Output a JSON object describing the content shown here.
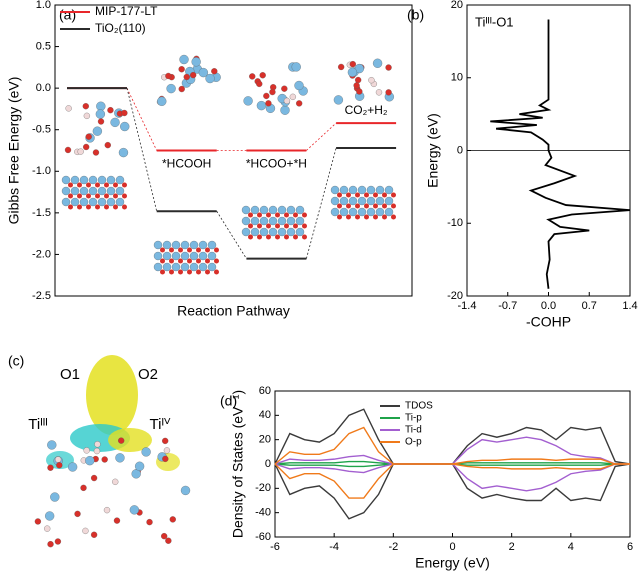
{
  "chart_data": [
    {
      "type": "level",
      "panel_label": "(a)",
      "x_label": "Reaction Pathway",
      "y_label": "Gibbs Free Energy (eV)",
      "categories": [
        null,
        "*HCOOH",
        "*HCOO+*H",
        "CO₂+H₂"
      ],
      "series": [
        {
          "name": "MIP-177-LT",
          "color": "#e8262a",
          "values": [
            0,
            -0.75,
            -0.75,
            -0.42
          ]
        },
        {
          "name": "TiO₂(110)",
          "color": "#2b2b2b",
          "values": [
            0,
            -1.48,
            -2.05,
            -0.72
          ]
        }
      ],
      "ylim": [
        -2.5,
        1.0
      ],
      "yticks": [
        -2.5,
        {
          "value": -2,
          "label": "-2.0"
        },
        -1.5,
        {
          "value": -1,
          "label": "-1.0"
        },
        -0.5,
        {
          "value": 0,
          "label": "0.0"
        },
        0.5,
        {
          "value": 1,
          "label": "1.0"
        }
      ],
      "legend": "top-left"
    },
    {
      "type": "cohp",
      "panel_label": "(b)",
      "annotation": "Tiᴵᴵᴵ-O1",
      "x_label": "-COHP",
      "y_label": "Energy (eV)",
      "color": "#000000",
      "x": [
        0,
        0,
        -0.15,
        0,
        -0.5,
        -0.1,
        -1.0,
        -0.2,
        -0.9,
        -0.3,
        -0.1,
        0,
        0,
        0.05,
        -0.05,
        0.45,
        0.1,
        -0.3,
        -0.05,
        0.3,
        1.4,
        0.4,
        0,
        0.2,
        0.7,
        0.1,
        0,
        0.02,
        -0.03,
        0
      ],
      "y": [
        18,
        7,
        6.2,
        5.6,
        5,
        4.5,
        4,
        3.5,
        3,
        2.5,
        1.5,
        0.8,
        0,
        -1,
        -2,
        -3.5,
        -4.5,
        -5.5,
        -6.5,
        -7.5,
        -8.2,
        -8.8,
        -9.5,
        -10.5,
        -11,
        -11.5,
        -12.5,
        -15,
        -17,
        -19
      ],
      "xlim": [
        -1.4,
        1.4
      ],
      "xticks": [
        -1.4,
        -0.7,
        {
          "value": 0,
          "label": "0.0"
        },
        0.7,
        1.4
      ],
      "ylim": [
        -20,
        20
      ],
      "yticks": [
        -20,
        -10,
        0,
        10,
        20
      ]
    },
    {
      "type": "dos",
      "panel_label": "(d)",
      "x_label": "Energy (eV)",
      "y_label": "Density of States (eV⁻¹)",
      "x": [
        -6,
        -5.5,
        -5,
        -4.5,
        -4,
        -3.5,
        -3,
        -2.5,
        -2,
        -1.5,
        -1,
        -0.5,
        0,
        0.5,
        1,
        1.5,
        2,
        2.5,
        3,
        3.5,
        4,
        4.5,
        5,
        5.5,
        6
      ],
      "series": [
        {
          "name": "TDOS",
          "color": "#3a3a3a",
          "values": [
            0,
            25,
            20,
            18,
            25,
            40,
            45,
            20,
            0,
            0,
            0,
            0,
            0,
            15,
            25,
            22,
            25,
            30,
            28,
            20,
            30,
            28,
            30,
            2,
            0
          ],
          "values_down": [
            0,
            -25,
            -20,
            -18,
            -28,
            -45,
            -40,
            -25,
            0,
            0,
            0,
            0,
            0,
            -20,
            -28,
            -25,
            -28,
            -30,
            -30,
            -20,
            -30,
            -28,
            -30,
            -2,
            0
          ]
        },
        {
          "name": "Ti-p",
          "color": "#1fa34a",
          "values": [
            0,
            1,
            1,
            1,
            1,
            2,
            2,
            1,
            0,
            0,
            0,
            0,
            0,
            1,
            1,
            1,
            1,
            1,
            1,
            1,
            1,
            1,
            1,
            0,
            0
          ],
          "values_down": [
            0,
            -1,
            -1,
            -1,
            -1,
            -2,
            -2,
            -1,
            0,
            0,
            0,
            0,
            0,
            -1,
            -1,
            -1,
            -1,
            -1,
            -1,
            -1,
            -1,
            -1,
            -1,
            0,
            0
          ]
        },
        {
          "name": "Ti-d",
          "color": "#a35fd0",
          "values": [
            0,
            4,
            3,
            3,
            4,
            6,
            7,
            3,
            0,
            0,
            0,
            0,
            0,
            12,
            20,
            18,
            20,
            22,
            20,
            15,
            8,
            6,
            5,
            0,
            0
          ],
          "values_down": [
            0,
            -4,
            -3,
            -3,
            -4,
            -6,
            -7,
            -3,
            0,
            0,
            0,
            0,
            0,
            -12,
            -20,
            -18,
            -20,
            -22,
            -20,
            -15,
            -8,
            -6,
            -5,
            0,
            0
          ]
        },
        {
          "name": "O-p",
          "color": "#f07a1a",
          "values": [
            0,
            10,
            8,
            8,
            12,
            25,
            30,
            10,
            0,
            0,
            0,
            0,
            0,
            2,
            3,
            3,
            4,
            4,
            4,
            3,
            4,
            4,
            4,
            0,
            0
          ],
          "values_down": [
            0,
            -12,
            -8,
            -8,
            -14,
            -28,
            -28,
            -12,
            0,
            0,
            0,
            0,
            0,
            -2,
            -3,
            -3,
            -4,
            -4,
            -4,
            -3,
            -4,
            -4,
            -4,
            0,
            0
          ]
        }
      ],
      "xlim": [
        -6,
        6
      ],
      "xticks": [
        -6,
        -4,
        -2,
        0,
        2,
        4,
        6
      ],
      "ylim": [
        -60,
        60
      ],
      "yticks": [
        -60,
        -40,
        -20,
        0,
        20,
        40,
        60
      ],
      "legend": "top-center"
    }
  ],
  "structure_c": {
    "panel_label": "(c)",
    "labels": [
      "O1",
      "O2",
      "Tiᴵᴵᴵ",
      "Tiᴵⱽ"
    ]
  }
}
